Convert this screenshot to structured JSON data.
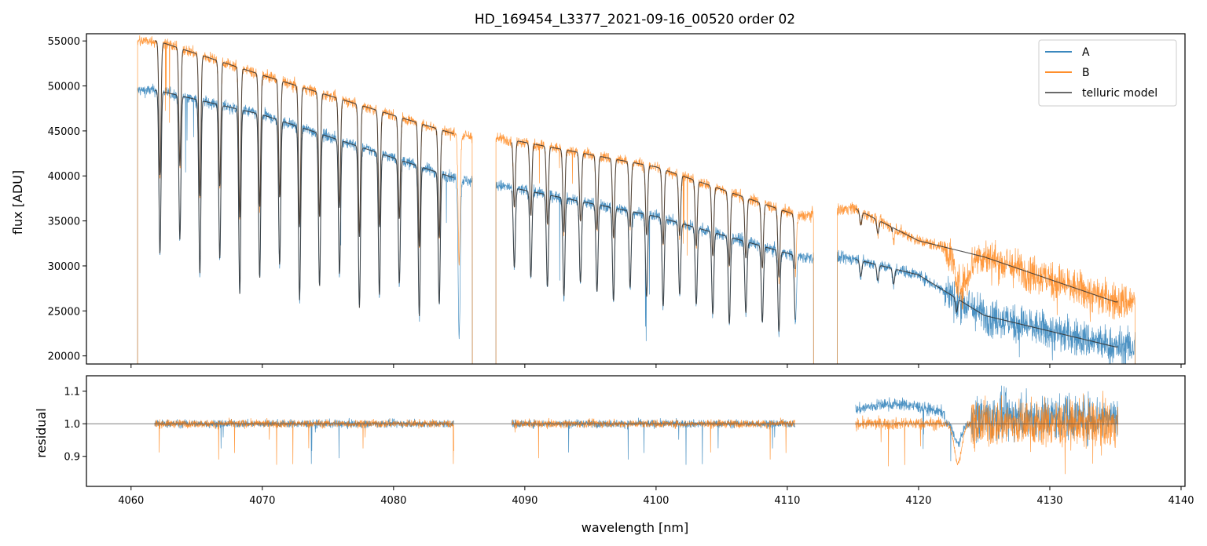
{
  "chart_data": [
    {
      "type": "line",
      "title": "HD_169454_L3377_2021-09-16_00520  order 02",
      "xlabel": "",
      "ylabel": "flux [ADU]",
      "xlim": [
        4056.6,
        4140.3
      ],
      "ylim": [
        19100,
        55800
      ],
      "yticks": [
        20000,
        25000,
        30000,
        35000,
        40000,
        45000,
        50000,
        55000
      ],
      "ytick_labels": [
        "20000",
        "25000",
        "30000",
        "35000",
        "40000",
        "45000",
        "50000",
        "55000"
      ],
      "grid": false,
      "legend_position": "top-right",
      "segments": [
        [
          4060.5,
          4086.0
        ],
        [
          4087.8,
          4112.0
        ],
        [
          4113.8,
          4136.5
        ]
      ],
      "series": [
        {
          "name": "A",
          "color": "#1f77b4"
        },
        {
          "name": "B",
          "color": "#ff7f0e"
        },
        {
          "name": "telluric model",
          "color": "#555555"
        }
      ],
      "approx_levels": {
        "B_continuum": [
          [
            4062,
            55000
          ],
          [
            4070,
            51200
          ],
          [
            4085,
            44500
          ],
          [
            4089,
            44000
          ],
          [
            4100,
            41000
          ],
          [
            4111,
            35500
          ],
          [
            4115,
            36500
          ],
          [
            4120,
            32800
          ],
          [
            4125,
            31000
          ],
          [
            4135,
            26000
          ]
        ],
        "A_continuum": [
          [
            4062,
            49500
          ],
          [
            4070,
            46800
          ],
          [
            4085,
            39600
          ],
          [
            4089,
            38700
          ],
          [
            4100,
            35500
          ],
          [
            4111,
            31000
          ],
          [
            4115,
            30800
          ],
          [
            4120,
            29000
          ],
          [
            4125,
            24500
          ],
          [
            4135,
            21000
          ]
        ]
      }
    },
    {
      "type": "line",
      "xlabel": "wavelength [nm]",
      "ylabel": "residual",
      "xlim": [
        4056.6,
        4140.3
      ],
      "ylim": [
        0.808,
        1.147
      ],
      "yticks": [
        0.9,
        1.0,
        1.1
      ],
      "ytick_labels": [
        "0.9",
        "1.0",
        "1.1"
      ],
      "xticks": [
        4060,
        4070,
        4080,
        4090,
        4100,
        4110,
        4120,
        4130,
        4140
      ],
      "xtick_labels": [
        "4060",
        "4070",
        "4080",
        "4090",
        "4100",
        "4110",
        "4120",
        "4130",
        "4140"
      ],
      "reference_line": 1.0,
      "segments": [
        [
          4061.8,
          4084.6
        ],
        [
          4089.0,
          4110.6
        ],
        [
          4115.2,
          4135.2
        ]
      ],
      "series": [
        {
          "name": "A",
          "color": "#1f77b4"
        },
        {
          "name": "B",
          "color": "#ff7f0e"
        }
      ]
    }
  ],
  "legend": {
    "items": [
      {
        "label": "A",
        "color": "#1f77b4"
      },
      {
        "label": "B",
        "color": "#ff7f0e"
      },
      {
        "label": "telluric model",
        "color": "#555555"
      }
    ]
  }
}
